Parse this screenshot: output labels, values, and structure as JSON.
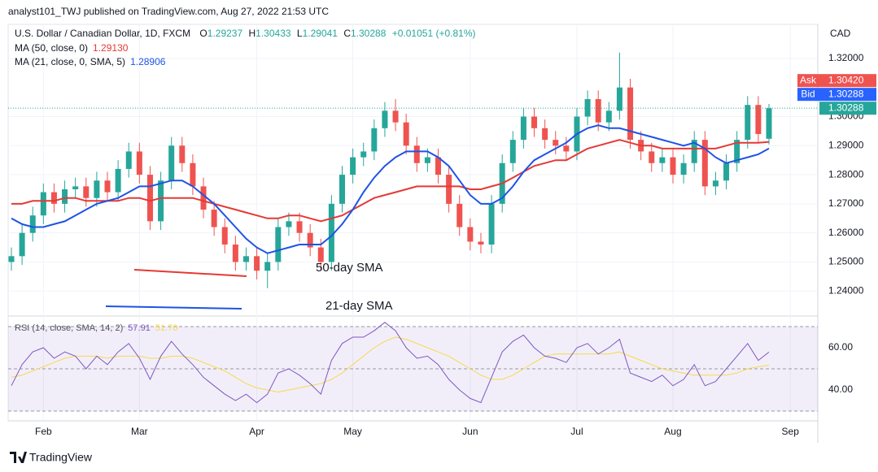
{
  "page": {
    "attribution": "analyst101_TWJ published on TradingView.com, Aug 27, 2022 21:53 UTC",
    "footer_logo": "TradingView"
  },
  "chart_data": {
    "type": "candlestick",
    "symbol": "U.S. Dollar / Canadian Dollar, 1D, FXCM",
    "ohlc_letters": [
      "O",
      "H",
      "L",
      "C"
    ],
    "change": "+0.01051 (+0.81%)",
    "currency": "CAD",
    "categories": [
      null,
      null,
      null,
      "Feb",
      null,
      null,
      null,
      null,
      null,
      null,
      null,
      null,
      "Mar",
      null,
      null,
      null,
      null,
      null,
      null,
      null,
      null,
      null,
      null,
      "Apr",
      null,
      null,
      null,
      null,
      null,
      null,
      null,
      null,
      "May",
      null,
      null,
      null,
      null,
      null,
      null,
      null,
      null,
      null,
      null,
      "Jun",
      null,
      null,
      null,
      null,
      null,
      null,
      null,
      null,
      null,
      "Jul",
      null,
      null,
      null,
      null,
      null,
      null,
      null,
      null,
      "Aug",
      null,
      null,
      null,
      null,
      null,
      null,
      null,
      null,
      null,
      null,
      "Sep",
      null,
      null
    ],
    "candles": {
      "up_color": "#26a69a",
      "down_color": "#ef5350",
      "open": [
        1.25,
        1.252,
        1.26,
        1.266,
        1.274,
        1.27,
        1.275,
        1.276,
        1.272,
        1.278,
        1.274,
        1.282,
        1.288,
        1.28,
        1.264,
        1.278,
        1.29,
        1.284,
        1.276,
        1.268,
        1.262,
        1.256,
        1.25,
        1.252,
        1.247,
        1.25,
        1.262,
        1.264,
        1.26,
        1.255,
        1.25,
        1.27,
        1.28,
        1.286,
        1.288,
        1.296,
        1.302,
        1.298,
        1.29,
        1.284,
        1.286,
        1.28,
        1.27,
        1.262,
        1.257,
        1.256,
        1.27,
        1.284,
        1.292,
        1.3,
        1.296,
        1.292,
        1.29,
        1.288,
        1.3,
        1.306,
        1.298,
        1.302,
        1.31,
        1.292,
        1.288,
        1.284,
        1.286,
        1.28,
        1.284,
        1.292,
        1.276,
        1.278,
        1.284,
        1.292,
        1.304,
        1.29237,
        null,
        null,
        null,
        null
      ],
      "high": [
        1.255,
        1.263,
        1.269,
        1.277,
        1.277,
        1.278,
        1.279,
        1.279,
        1.281,
        1.281,
        1.285,
        1.291,
        1.291,
        1.283,
        1.281,
        1.293,
        1.293,
        1.287,
        1.279,
        1.271,
        1.265,
        1.259,
        1.255,
        1.255,
        1.253,
        1.265,
        1.267,
        1.267,
        1.263,
        1.258,
        1.273,
        1.283,
        1.289,
        1.291,
        1.299,
        1.305,
        1.306,
        1.301,
        1.293,
        1.289,
        1.289,
        1.283,
        1.273,
        1.265,
        1.26,
        1.273,
        1.287,
        1.295,
        1.303,
        1.303,
        1.299,
        1.295,
        1.293,
        1.303,
        1.309,
        1.309,
        1.305,
        1.322,
        1.313,
        1.295,
        1.291,
        1.289,
        1.289,
        1.287,
        1.295,
        1.295,
        1.281,
        1.287,
        1.295,
        1.307,
        1.307,
        1.30433,
        null,
        null,
        null,
        null
      ],
      "low": [
        1.247,
        1.249,
        1.257,
        1.263,
        1.267,
        1.267,
        1.272,
        1.269,
        1.269,
        1.271,
        1.271,
        1.279,
        1.277,
        1.261,
        1.261,
        1.275,
        1.281,
        1.273,
        1.265,
        1.259,
        1.253,
        1.247,
        1.247,
        1.244,
        1.241,
        1.247,
        1.259,
        1.257,
        1.252,
        1.247,
        1.247,
        1.267,
        1.277,
        1.283,
        1.285,
        1.293,
        1.295,
        1.287,
        1.281,
        1.281,
        1.277,
        1.267,
        1.259,
        1.254,
        1.253,
        1.253,
        1.267,
        1.281,
        1.289,
        1.293,
        1.289,
        1.287,
        1.285,
        1.285,
        1.297,
        1.295,
        1.295,
        1.299,
        1.289,
        1.285,
        1.281,
        1.281,
        1.277,
        1.277,
        1.281,
        1.273,
        1.273,
        1.275,
        1.281,
        1.289,
        1.291,
        1.29041,
        null,
        null,
        null,
        null
      ],
      "close": [
        1.252,
        1.26,
        1.266,
        1.274,
        1.27,
        1.275,
        1.276,
        1.272,
        1.278,
        1.274,
        1.282,
        1.288,
        1.28,
        1.264,
        1.278,
        1.29,
        1.284,
        1.276,
        1.268,
        1.262,
        1.256,
        1.25,
        1.252,
        1.247,
        1.25,
        1.262,
        1.264,
        1.26,
        1.255,
        1.25,
        1.27,
        1.28,
        1.286,
        1.288,
        1.296,
        1.302,
        1.298,
        1.29,
        1.284,
        1.286,
        1.28,
        1.27,
        1.262,
        1.257,
        1.256,
        1.27,
        1.284,
        1.292,
        1.3,
        1.296,
        1.292,
        1.29,
        1.288,
        1.3,
        1.306,
        1.298,
        1.302,
        1.31,
        1.292,
        1.288,
        1.284,
        1.286,
        1.28,
        1.284,
        1.292,
        1.276,
        1.278,
        1.284,
        1.292,
        1.304,
        1.294,
        1.30288,
        null,
        null,
        null,
        null
      ]
    },
    "lines": [
      {
        "name": "MA (50, close, 0)",
        "color": "#e53935",
        "last_label": "1.29130",
        "values": [
          1.27,
          1.27,
          1.271,
          1.271,
          1.271,
          1.272,
          1.272,
          1.271,
          1.271,
          1.271,
          1.271,
          1.272,
          1.272,
          1.271,
          1.272,
          1.272,
          1.272,
          1.272,
          1.271,
          1.27,
          1.269,
          1.268,
          1.267,
          1.266,
          1.265,
          1.265,
          1.266,
          1.266,
          1.265,
          1.264,
          1.265,
          1.266,
          1.268,
          1.27,
          1.272,
          1.273,
          1.274,
          1.275,
          1.276,
          1.276,
          1.276,
          1.276,
          1.276,
          1.275,
          1.275,
          1.276,
          1.277,
          1.279,
          1.281,
          1.283,
          1.284,
          1.285,
          1.285,
          1.287,
          1.289,
          1.29,
          1.291,
          1.292,
          1.291,
          1.29,
          1.29,
          1.289,
          1.289,
          1.289,
          1.289,
          1.289,
          1.289,
          1.29,
          1.291,
          1.291,
          1.291,
          1.2913,
          null,
          null,
          null,
          null
        ]
      },
      {
        "name": "MA (21, close, 0, SMA, 5)",
        "color": "#1e53e5",
        "last_label": "1.28906",
        "values": [
          1.265,
          1.263,
          1.262,
          1.262,
          1.263,
          1.264,
          1.266,
          1.268,
          1.27,
          1.271,
          1.272,
          1.274,
          1.276,
          1.276,
          1.277,
          1.278,
          1.278,
          1.276,
          1.273,
          1.27,
          1.266,
          1.262,
          1.258,
          1.255,
          1.253,
          1.254,
          1.255,
          1.256,
          1.256,
          1.256,
          1.259,
          1.263,
          1.268,
          1.274,
          1.279,
          1.283,
          1.286,
          1.288,
          1.288,
          1.288,
          1.286,
          1.283,
          1.278,
          1.273,
          1.27,
          1.27,
          1.272,
          1.276,
          1.281,
          1.285,
          1.287,
          1.289,
          1.291,
          1.294,
          1.296,
          1.297,
          1.296,
          1.296,
          1.295,
          1.294,
          1.293,
          1.292,
          1.291,
          1.29,
          1.291,
          1.289,
          1.286,
          1.284,
          1.285,
          1.286,
          1.287,
          1.28906,
          null,
          null,
          null,
          null
        ]
      }
    ],
    "ylim": [
      1.2317,
      1.3317
    ],
    "yticks": [
      {
        "value": 1.24,
        "label": "1.24000"
      },
      {
        "value": 1.25,
        "label": "1.25000"
      },
      {
        "value": 1.26,
        "label": "1.26000"
      },
      {
        "value": 1.27,
        "label": "1.27000"
      },
      {
        "value": 1.28,
        "label": "1.28000"
      },
      {
        "value": 1.29,
        "label": "1.29000"
      },
      {
        "value": 1.3,
        "label": "1.30000"
      },
      {
        "value": 1.32,
        "label": "1.32000"
      }
    ],
    "ask": {
      "name": "Ask",
      "value": 1.3042,
      "label": "1.30420"
    },
    "bid": {
      "name": "Bid",
      "value": 1.30288,
      "label": "1.30288"
    },
    "annotations": [
      {
        "text": "50-day SMA",
        "color": "#e53935"
      },
      {
        "text": "21-day SMA",
        "color": "#1e53e5"
      }
    ],
    "rsi": {
      "name": "RSI (14, close, SMA, 14, 2)",
      "color": "#7e57c2",
      "ma_color": "#f5d94e",
      "ma_label": "51.70",
      "values": [
        42,
        52,
        58,
        60,
        55,
        58,
        56,
        50,
        56,
        52,
        58,
        62,
        55,
        45,
        56,
        63,
        57,
        52,
        46,
        42,
        38,
        35,
        38,
        34,
        38,
        48,
        50,
        47,
        43,
        38,
        54,
        62,
        65,
        65,
        68,
        72,
        68,
        60,
        55,
        56,
        52,
        45,
        40,
        36,
        34,
        46,
        58,
        63,
        66,
        60,
        56,
        55,
        53,
        60,
        62,
        57,
        60,
        64,
        48,
        46,
        44,
        47,
        42,
        45,
        52,
        42,
        44,
        50,
        56,
        62,
        54,
        57.91,
        null,
        null,
        null,
        null
      ],
      "ma_values": [
        46,
        47,
        49,
        51,
        53,
        55,
        56,
        56,
        56,
        55,
        56,
        56,
        56,
        55,
        55,
        56,
        56,
        55,
        53,
        51,
        49,
        46,
        43,
        41,
        40,
        39,
        40,
        41,
        42,
        43,
        45,
        48,
        52,
        56,
        60,
        63,
        65,
        64,
        62,
        60,
        58,
        56,
        53,
        50,
        47,
        45,
        45,
        47,
        50,
        53,
        56,
        57,
        57,
        57,
        57,
        57,
        57,
        58,
        56,
        54,
        52,
        50,
        49,
        48,
        47,
        47,
        47,
        47,
        48,
        50,
        51,
        51.7,
        null,
        null,
        null,
        null
      ],
      "ylim": [
        25.4,
        74.6
      ],
      "levels": [
        30,
        50,
        70
      ],
      "yticks": [
        {
          "value": 40,
          "label": "40.00"
        },
        {
          "value": 60,
          "label": "60.00"
        }
      ]
    }
  }
}
